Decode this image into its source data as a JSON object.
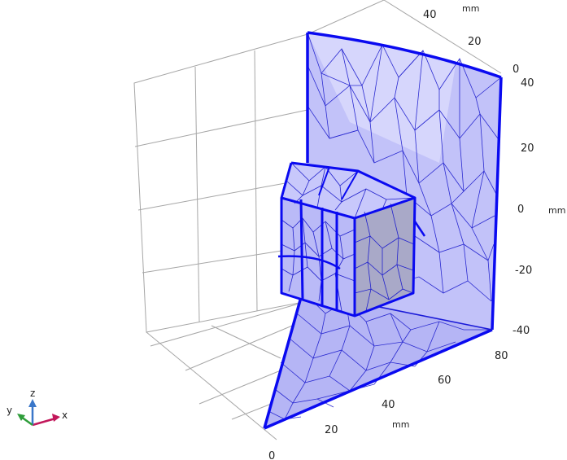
{
  "colors": {
    "background": "#ffffff",
    "grid": "#a6a6a6",
    "mesh_fill": "#b8b8f8",
    "mesh_fill_light": "#d4d4fb",
    "mesh_edge": "#1a1ad8",
    "boundary_edge": "#0a0af0",
    "shaded_face": "#a9a9c8",
    "axis_x": "#c2185b",
    "axis_y": "#2e9d3a",
    "axis_z": "#3a77c9"
  },
  "axes": {
    "z_axis": {
      "unit": "mm",
      "ticks": [
        "40",
        "20",
        "0",
        "-20",
        "-40"
      ]
    },
    "y_axis_top": {
      "unit": "mm",
      "ticks": [
        "40",
        "20",
        "0"
      ]
    },
    "x_axis_bottom": {
      "unit": "mm",
      "ticks": [
        "80",
        "60",
        "40",
        "20",
        "0"
      ]
    }
  },
  "triad": {
    "x_label": "x",
    "y_label": "y",
    "z_label": "z"
  }
}
